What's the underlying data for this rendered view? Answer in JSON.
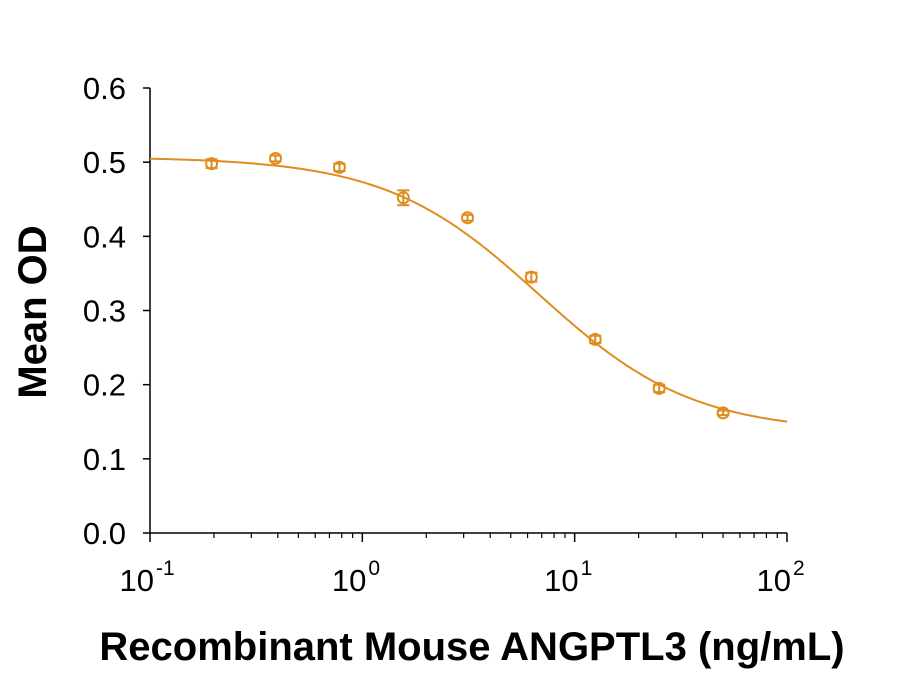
{
  "chart_data": {
    "type": "scatter",
    "title": "",
    "xlabel": "Recombinant Mouse ANGPTL3 (ng/mL)",
    "ylabel": "Mean OD",
    "xscale": "log",
    "xlim": [
      0.1,
      100
    ],
    "ylim": [
      0.0,
      0.6
    ],
    "x_ticks": [
      {
        "value": 0.1,
        "base": "10",
        "exp": "-1"
      },
      {
        "value": 1,
        "base": "10",
        "exp": "0"
      },
      {
        "value": 10,
        "base": "10",
        "exp": "1"
      },
      {
        "value": 100,
        "base": "10",
        "exp": "2"
      }
    ],
    "y_ticks": [
      {
        "value": 0.0,
        "label": "0.0"
      },
      {
        "value": 0.1,
        "label": "0.1"
      },
      {
        "value": 0.2,
        "label": "0.2"
      },
      {
        "value": 0.3,
        "label": "0.3"
      },
      {
        "value": 0.4,
        "label": "0.4"
      },
      {
        "value": 0.5,
        "label": "0.5"
      },
      {
        "value": 0.6,
        "label": "0.6"
      }
    ],
    "grid": false,
    "legend": "none",
    "color": "#E08C1E",
    "series": [
      {
        "marker": "open-circle",
        "points": [
          {
            "x": 0.195,
            "y": 0.498,
            "err": 0.006
          },
          {
            "x": 0.39,
            "y": 0.505,
            "err": 0.004
          },
          {
            "x": 0.78,
            "y": 0.493,
            "err": 0.005
          },
          {
            "x": 1.56,
            "y": 0.452,
            "err": 0.01
          },
          {
            "x": 3.13,
            "y": 0.425,
            "err": 0.004
          },
          {
            "x": 6.25,
            "y": 0.345,
            "err": 0.006
          },
          {
            "x": 12.5,
            "y": 0.261,
            "err": 0.005
          },
          {
            "x": 25,
            "y": 0.195,
            "err": 0.005
          },
          {
            "x": 50,
            "y": 0.162,
            "err": 0.003
          }
        ]
      }
    ],
    "fit": {
      "type": "4PL",
      "top": 0.507,
      "bottom": 0.136,
      "ec50": 6.8,
      "hill": 1.2
    }
  }
}
